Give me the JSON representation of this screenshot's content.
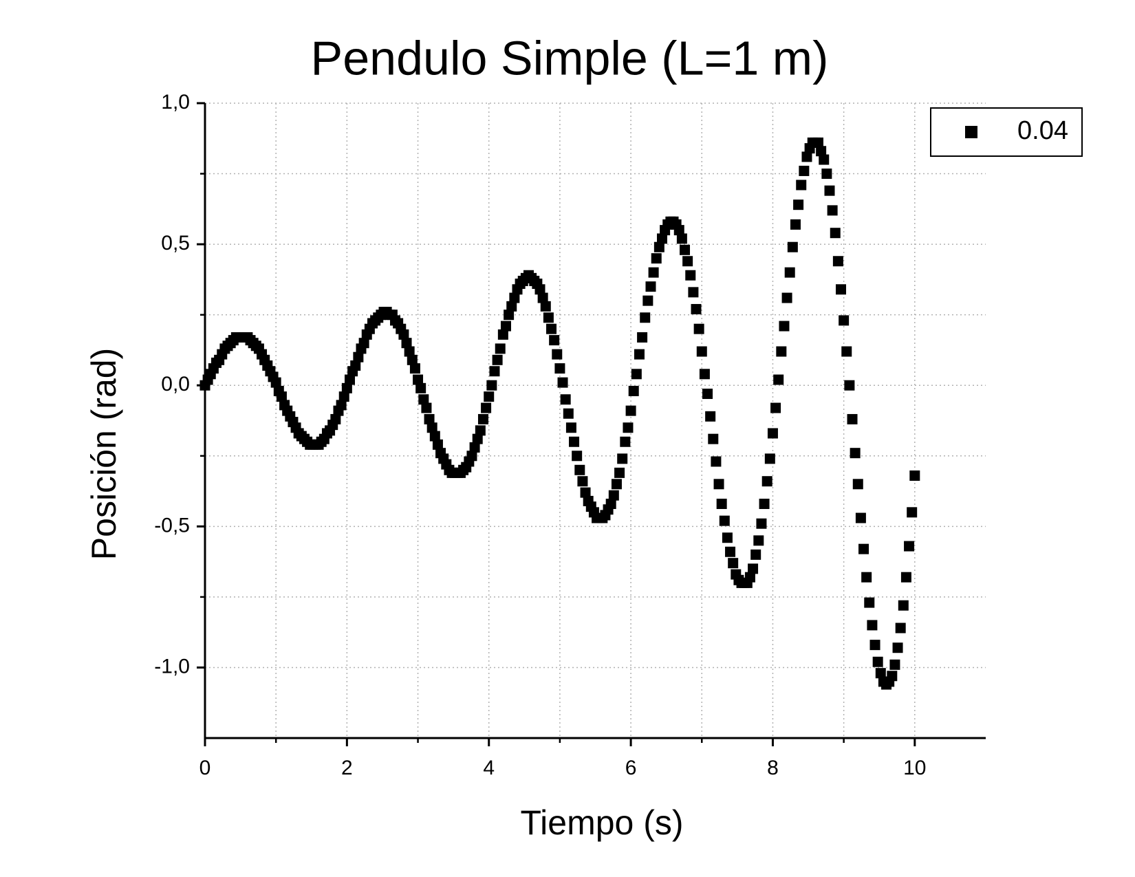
{
  "chart_data": {
    "type": "scatter",
    "title": "Pendulo Simple (L=1 m)",
    "x_label": "Tiempo (s)",
    "y_label": "Posición (rad)",
    "x": [
      0,
      0.04,
      0.08,
      0.12,
      0.16,
      0.2,
      0.24,
      0.28,
      0.32,
      0.36,
      0.4,
      0.44,
      0.48,
      0.52,
      0.56,
      0.6,
      0.64,
      0.68,
      0.72,
      0.76,
      0.8,
      0.84,
      0.88,
      0.92,
      0.96,
      1,
      1.04,
      1.08,
      1.12,
      1.16,
      1.2,
      1.24,
      1.28,
      1.32,
      1.36,
      1.4,
      1.44,
      1.48,
      1.52,
      1.56,
      1.6,
      1.64,
      1.68,
      1.72,
      1.76,
      1.8,
      1.84,
      1.88,
      1.92,
      1.96,
      2,
      2.04,
      2.08,
      2.12,
      2.16,
      2.2,
      2.24,
      2.28,
      2.32,
      2.36,
      2.4,
      2.44,
      2.48,
      2.52,
      2.56,
      2.6,
      2.64,
      2.68,
      2.72,
      2.76,
      2.8,
      2.84,
      2.88,
      2.92,
      2.96,
      3,
      3.04,
      3.08,
      3.12,
      3.16,
      3.2,
      3.24,
      3.28,
      3.32,
      3.36,
      3.4,
      3.44,
      3.48,
      3.52,
      3.56,
      3.6,
      3.64,
      3.68,
      3.72,
      3.76,
      3.8,
      3.84,
      3.88,
      3.92,
      3.96,
      4,
      4.04,
      4.08,
      4.12,
      4.16,
      4.2,
      4.24,
      4.28,
      4.32,
      4.36,
      4.4,
      4.44,
      4.48,
      4.52,
      4.56,
      4.6,
      4.64,
      4.68,
      4.72,
      4.76,
      4.8,
      4.84,
      4.88,
      4.92,
      4.96,
      5,
      5.04,
      5.08,
      5.12,
      5.16,
      5.2,
      5.24,
      5.28,
      5.32,
      5.36,
      5.4,
      5.44,
      5.48,
      5.52,
      5.56,
      5.6,
      5.64,
      5.68,
      5.72,
      5.76,
      5.8,
      5.84,
      5.88,
      5.92,
      5.96,
      6,
      6.04,
      6.08,
      6.12,
      6.16,
      6.2,
      6.24,
      6.28,
      6.32,
      6.36,
      6.4,
      6.44,
      6.48,
      6.52,
      6.56,
      6.6,
      6.64,
      6.68,
      6.72,
      6.76,
      6.8,
      6.84,
      6.88,
      6.92,
      6.96,
      7,
      7.04,
      7.08,
      7.12,
      7.16,
      7.2,
      7.24,
      7.28,
      7.32,
      7.36,
      7.4,
      7.44,
      7.48,
      7.52,
      7.56,
      7.6,
      7.64,
      7.68,
      7.72,
      7.76,
      7.8,
      7.84,
      7.88,
      7.92,
      7.96,
      8,
      8.04,
      8.08,
      8.12,
      8.16,
      8.2,
      8.24,
      8.28,
      8.32,
      8.36,
      8.4,
      8.44,
      8.48,
      8.52,
      8.56,
      8.6,
      8.64,
      8.68,
      8.72,
      8.76,
      8.8,
      8.84,
      8.88,
      8.92,
      8.96,
      9,
      9.04,
      9.08,
      9.12,
      9.16,
      9.2,
      9.24,
      9.28,
      9.32,
      9.36,
      9.4,
      9.44,
      9.48,
      9.52,
      9.56,
      9.6,
      9.64,
      9.68,
      9.72,
      9.76,
      9.8,
      9.84,
      9.88,
      9.92,
      9.96,
      10
    ],
    "series": [
      {
        "name": "0.04",
        "color": "#000000",
        "values": [
          0,
          0.02,
          0.04,
          0.06,
          0.08,
          0.09,
          0.11,
          0.13,
          0.14,
          0.15,
          0.16,
          0.17,
          0.17,
          0.17,
          0.17,
          0.17,
          0.16,
          0.15,
          0.14,
          0.13,
          0.11,
          0.09,
          0.07,
          0.05,
          0.03,
          0.01,
          -0.02,
          -0.04,
          -0.07,
          -0.09,
          -0.11,
          -0.13,
          -0.15,
          -0.17,
          -0.18,
          -0.19,
          -0.2,
          -0.21,
          -0.21,
          -0.21,
          -0.21,
          -0.2,
          -0.19,
          -0.17,
          -0.16,
          -0.14,
          -0.12,
          -0.09,
          -0.07,
          -0.04,
          -0.01,
          0.02,
          0.05,
          0.07,
          0.1,
          0.13,
          0.15,
          0.18,
          0.2,
          0.22,
          0.23,
          0.24,
          0.25,
          0.26,
          0.26,
          0.25,
          0.25,
          0.23,
          0.22,
          0.2,
          0.18,
          0.15,
          0.12,
          0.09,
          0.06,
          0.02,
          -0.01,
          -0.05,
          -0.08,
          -0.12,
          -0.15,
          -0.18,
          -0.21,
          -0.24,
          -0.26,
          -0.28,
          -0.3,
          -0.31,
          -0.31,
          -0.31,
          -0.31,
          -0.3,
          -0.29,
          -0.27,
          -0.25,
          -0.22,
          -0.19,
          -0.16,
          -0.12,
          -0.08,
          -0.04,
          0,
          0.05,
          0.09,
          0.13,
          0.18,
          0.21,
          0.25,
          0.28,
          0.31,
          0.34,
          0.36,
          0.37,
          0.38,
          0.39,
          0.38,
          0.37,
          0.36,
          0.34,
          0.31,
          0.28,
          0.24,
          0.2,
          0.16,
          0.11,
          0.06,
          0.01,
          -0.05,
          -0.1,
          -0.15,
          -0.2,
          -0.25,
          -0.3,
          -0.34,
          -0.38,
          -0.41,
          -0.43,
          -0.45,
          -0.47,
          -0.47,
          -0.47,
          -0.46,
          -0.44,
          -0.42,
          -0.39,
          -0.35,
          -0.31,
          -0.26,
          -0.2,
          -0.15,
          -0.09,
          -0.02,
          0.04,
          0.11,
          0.17,
          0.24,
          0.3,
          0.35,
          0.4,
          0.45,
          0.49,
          0.52,
          0.55,
          0.57,
          0.58,
          0.58,
          0.57,
          0.55,
          0.52,
          0.48,
          0.44,
          0.39,
          0.33,
          0.27,
          0.2,
          0.12,
          0.04,
          -0.03,
          -0.11,
          -0.19,
          -0.27,
          -0.35,
          -0.42,
          -0.48,
          -0.54,
          -0.59,
          -0.63,
          -0.67,
          -0.69,
          -0.7,
          -0.7,
          -0.7,
          -0.68,
          -0.65,
          -0.6,
          -0.55,
          -0.49,
          -0.42,
          -0.34,
          -0.26,
          -0.17,
          -0.08,
          0.02,
          0.12,
          0.21,
          0.31,
          0.4,
          0.49,
          0.57,
          0.64,
          0.71,
          0.76,
          0.81,
          0.84,
          0.86,
          0.86,
          0.86,
          0.83,
          0.8,
          0.75,
          0.69,
          0.62,
          0.54,
          0.44,
          0.34,
          0.23,
          0.12,
          0,
          -0.12,
          -0.24,
          -0.35,
          -0.47,
          -0.58,
          -0.68,
          -0.77,
          -0.85,
          -0.92,
          -0.98,
          -1.02,
          -1.05,
          -1.06,
          -1.05,
          -1.03,
          -0.99,
          -0.93,
          -0.86,
          -0.78,
          -0.68,
          -0.57,
          -0.45,
          -0.32
        ]
      }
    ],
    "xlim": [
      0,
      11
    ],
    "ylim": [
      -1.25,
      1.0
    ],
    "xticks": [
      0,
      2,
      4,
      6,
      8,
      10
    ],
    "xminorticks": [
      1,
      3,
      5,
      7,
      9
    ],
    "yticks": [
      {
        "value": 1.0,
        "label": "1,0"
      },
      {
        "value": 0.5,
        "label": "0,5"
      },
      {
        "value": 0,
        "label": "0,0"
      },
      {
        "value": -0.5,
        "label": "-0,5"
      },
      {
        "value": -1.0,
        "label": "-1,0"
      }
    ],
    "yminorticks": [
      0.75,
      0.25,
      -0.25,
      -0.75
    ],
    "grid": true,
    "legend": "upper right"
  }
}
